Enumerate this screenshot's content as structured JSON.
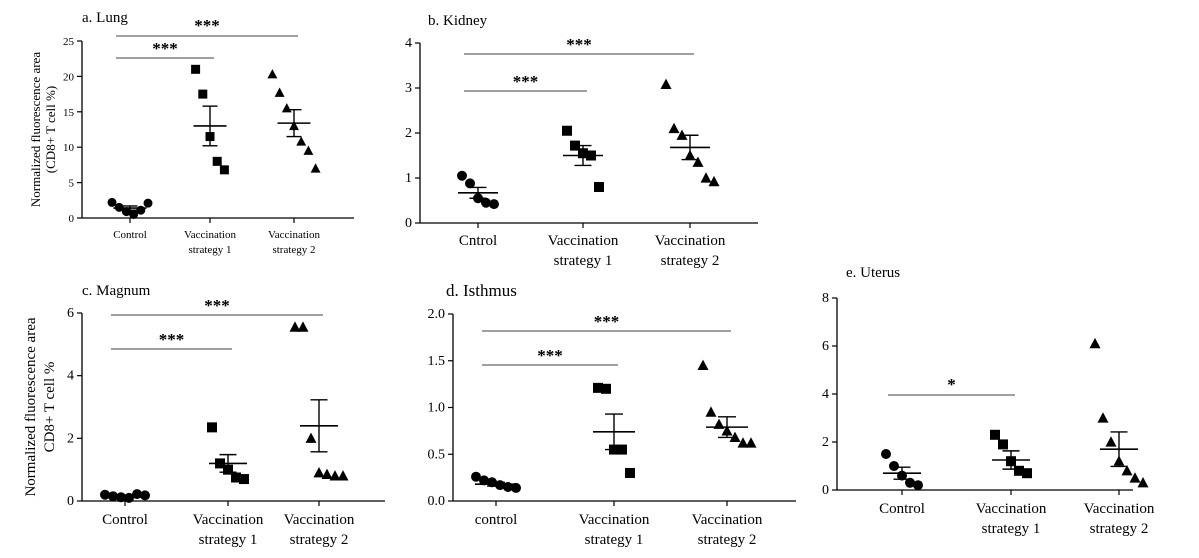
{
  "chart_data": [
    {
      "type": "scatter",
      "title": "a. Lung",
      "ylabel": [
        "Normalized fluorescence area",
        "(CD8+ T cell %)"
      ],
      "xlabel": "",
      "categories": [
        [
          "Control"
        ],
        [
          "Vaccination",
          "strategy 1"
        ],
        [
          "Vaccination",
          "strategy 2"
        ]
      ],
      "ylim": [
        0,
        25
      ],
      "yticks": [
        0,
        5,
        10,
        15,
        20,
        25
      ],
      "ytick_labels": [
        "0",
        "5",
        "10",
        "15",
        "20",
        "25"
      ],
      "marker": "circle/square/triangle",
      "points": [
        [
          2.2,
          1.5,
          0.9,
          0.5,
          1.1,
          2.1
        ],
        [
          21.0,
          17.5,
          11.5,
          8.0,
          6.8
        ],
        [
          20.3,
          17.7,
          15.5,
          13.0,
          10.8,
          9.5,
          7.0
        ]
      ],
      "mean": [
        1.4,
        13.0,
        13.4
      ],
      "sem": [
        0.3,
        2.8,
        1.9
      ],
      "significance": [
        {
          "from": "Control",
          "to": "Vaccination strategy 1",
          "label": "***"
        },
        {
          "from": "Control",
          "to": "Vaccination strategy 2",
          "label": "***"
        }
      ]
    },
    {
      "type": "scatter",
      "title": "b. Kidney",
      "ylabel": [],
      "xlabel": "",
      "categories": [
        [
          "Cntrol"
        ],
        [
          "Vaccination",
          "strategy 1"
        ],
        [
          "Vaccination",
          "strategy 2"
        ]
      ],
      "ylim": [
        0,
        4
      ],
      "yticks": [
        0,
        1,
        2,
        3,
        4
      ],
      "ytick_labels": [
        "0",
        "1",
        "2",
        "3",
        "4"
      ],
      "points": [
        [
          1.05,
          0.88,
          0.55,
          0.45,
          0.42
        ],
        [
          2.05,
          1.72,
          1.55,
          1.5,
          0.8
        ],
        [
          3.08,
          2.1,
          1.95,
          1.5,
          1.35,
          1.0,
          0.92
        ]
      ],
      "mean": [
        0.67,
        1.5,
        1.68
      ],
      "sem": [
        0.12,
        0.22,
        0.27
      ],
      "significance": [
        {
          "from": "Cntrol",
          "to": "Vaccination strategy 1",
          "label": "***"
        },
        {
          "from": "Cntrol",
          "to": "Vaccination strategy 2",
          "label": "***"
        }
      ]
    },
    {
      "type": "scatter",
      "title": "c. Magnum",
      "ylabel": [
        "Normalized fluorescence area",
        "CD8+ T cell %"
      ],
      "xlabel": "",
      "categories": [
        [
          "Control"
        ],
        [
          "Vaccination",
          "strategy 1"
        ],
        [
          "Vaccination",
          "strategy 2"
        ]
      ],
      "ylim": [
        0,
        6
      ],
      "yticks": [
        0,
        2,
        4,
        6
      ],
      "ytick_labels": [
        "0",
        "2",
        "4",
        "6"
      ],
      "points": [
        [
          0.2,
          0.15,
          0.12,
          0.1,
          0.22,
          0.18
        ],
        [
          2.35,
          1.2,
          1.0,
          0.75,
          0.7
        ],
        [
          5.55,
          5.55,
          2.0,
          0.9,
          0.85,
          0.8,
          0.8
        ]
      ],
      "mean": [
        0.15,
        1.2,
        2.4
      ],
      "sem": [
        0.03,
        0.28,
        0.83
      ],
      "significance": [
        {
          "from": "Control",
          "to": "Vaccination strategy 1",
          "label": "***"
        },
        {
          "from": "Control",
          "to": "Vaccination strategy 2",
          "label": "***"
        }
      ]
    },
    {
      "type": "scatter",
      "title": "d. Isthmus",
      "ylabel": [],
      "xlabel": "",
      "categories": [
        [
          "control"
        ],
        [
          "Vaccination",
          "strategy 1"
        ],
        [
          "Vaccination",
          "strategy 2"
        ]
      ],
      "ylim": [
        0,
        2.0
      ],
      "yticks": [
        0,
        0.5,
        1.0,
        1.5,
        2.0
      ],
      "ytick_labels": [
        "0.0",
        "0.5",
        "1.0",
        "1.5",
        "2.0"
      ],
      "points": [
        [
          0.26,
          0.22,
          0.2,
          0.17,
          0.15,
          0.14
        ],
        [
          1.21,
          1.2,
          0.55,
          0.55,
          0.3
        ],
        [
          1.45,
          0.95,
          0.82,
          0.75,
          0.68,
          0.62,
          0.62
        ]
      ],
      "mean": [
        0.18,
        0.74,
        0.79
      ],
      "sem": [
        0.02,
        0.19,
        0.11
      ],
      "significance": [
        {
          "from": "control",
          "to": "Vaccination strategy 1",
          "label": "***"
        },
        {
          "from": "control",
          "to": "Vaccination strategy 2",
          "label": "***"
        }
      ]
    },
    {
      "type": "scatter",
      "title": "e. Uterus",
      "ylabel": [],
      "xlabel": "",
      "categories": [
        [
          "Control"
        ],
        [
          "Vaccination",
          "strategy 1"
        ],
        [
          "Vaccination",
          "strategy 2"
        ]
      ],
      "ylim": [
        0,
        8
      ],
      "yticks": [
        0,
        2,
        4,
        6,
        8
      ],
      "ytick_labels": [
        "0",
        "2",
        "4",
        "6",
        "8"
      ],
      "points": [
        [
          1.5,
          1.0,
          0.6,
          0.3,
          0.2
        ],
        [
          2.3,
          1.9,
          1.2,
          0.8,
          0.7
        ],
        [
          6.1,
          3.0,
          2.0,
          1.2,
          0.8,
          0.5,
          0.3
        ]
      ],
      "mean": [
        0.7,
        1.25,
        1.7
      ],
      "sem": [
        0.25,
        0.38,
        0.72
      ],
      "significance": [
        {
          "from": "Control",
          "to": "Vaccination strategy 1",
          "label": "*"
        }
      ]
    }
  ]
}
